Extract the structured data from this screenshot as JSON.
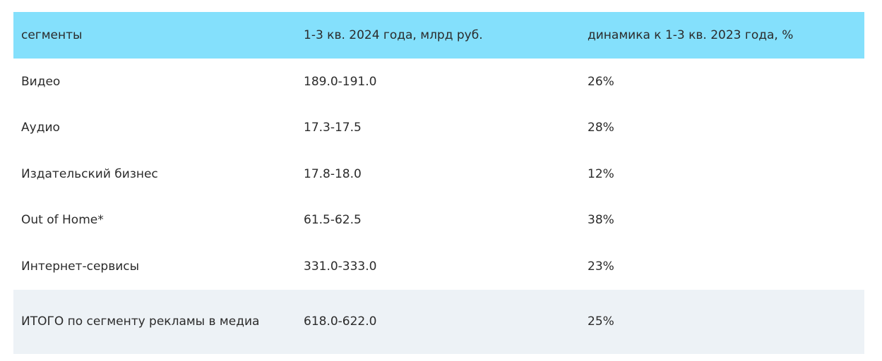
{
  "table": {
    "header": [
      "сегменты",
      "1-3 кв. 2024 года, млрд руб.",
      "динамика к 1-3 кв. 2023 года, %"
    ],
    "rows": [
      [
        "Видео",
        "189.0-191.0",
        "26%"
      ],
      [
        "Аудио",
        "17.3-17.5",
        "28%"
      ],
      [
        "Издательский бизнес",
        "17.8-18.0",
        "12%"
      ],
      [
        "Out of Home*",
        "61.5-62.5",
        "38%"
      ],
      [
        "Интернет-сервисы",
        "331.0-333.0",
        "23%"
      ],
      [
        "ИТОГО по сегменту рекламы в медиа",
        "618.0-622.0",
        "25%"
      ]
    ]
  }
}
